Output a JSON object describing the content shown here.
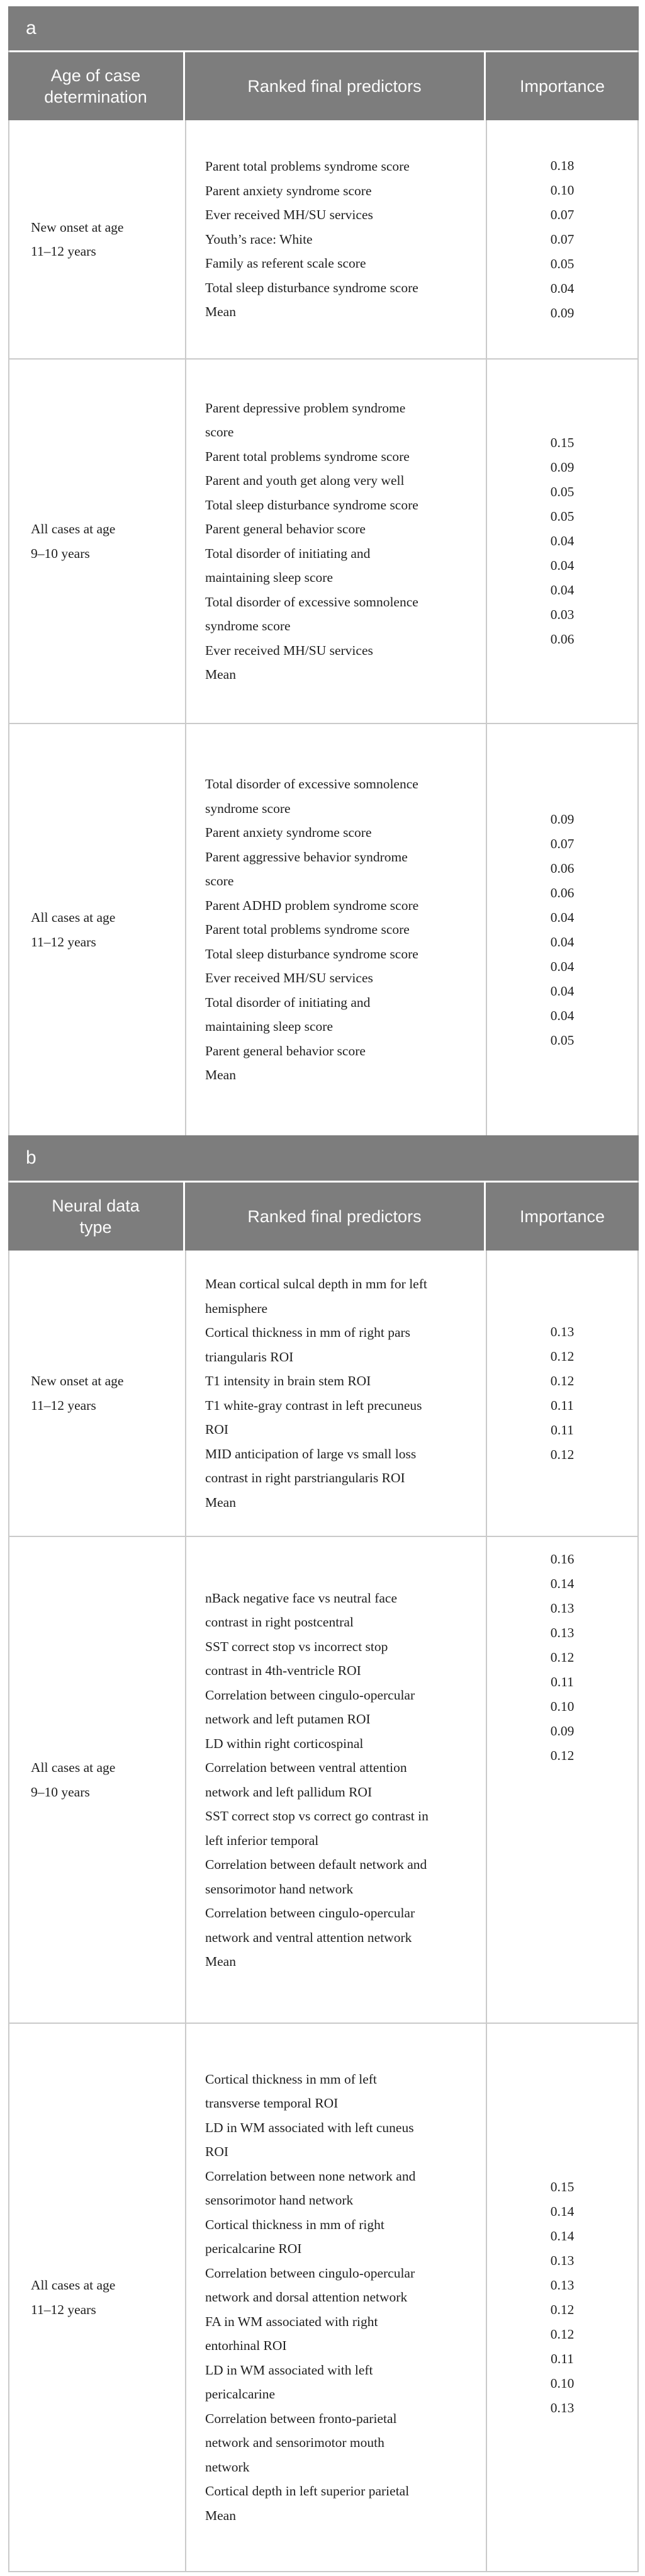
{
  "colors": {
    "header_bg": "#7d7d7d",
    "header_text": "#fbfbfb",
    "body_text": "#1f1f1f",
    "grid_line": "#cacaca"
  },
  "panels": [
    {
      "section_label": "a",
      "headers": [
        "Age of case\ndetermination",
        "Ranked final predictors",
        "Importance"
      ],
      "rows": [
        {
          "label": "New onset at age\n11–12 years",
          "predictors": [
            "Parent total problems syndrome score",
            "Parent anxiety syndrome score",
            "Ever received MH/SU services",
            "Youth’s race: White",
            "Family as referent scale score",
            "Total sleep disturbance syndrome score",
            "Mean"
          ],
          "importance": [
            "0.18",
            "0.10",
            "0.07",
            "0.07",
            "0.05",
            "0.04",
            "0.09"
          ]
        },
        {
          "label": "All cases at age\n9–10 years",
          "predictors": [
            "Parent depressive problem syndrome score",
            "Parent total problems syndrome score",
            "Parent and youth get along very well",
            "Total sleep disturbance syndrome score",
            "Parent general behavior score",
            "Total disorder of initiating and maintaining sleep score",
            "Total disorder of excessive somnolence syndrome score",
            "Ever received MH/SU services",
            "Mean"
          ],
          "importance": [
            "0.15",
            "0.09",
            "0.05",
            "0.05",
            "0.04",
            "0.04",
            "0.04",
            "0.03",
            "0.06"
          ]
        },
        {
          "label": "All cases at age\n11–12 years",
          "predictors": [
            "Total disorder of excessive somnolence syndrome score",
            "Parent anxiety syndrome score",
            "Parent aggressive behavior syndrome score",
            "Parent ADHD problem syndrome score",
            "Parent total problems syndrome score",
            "Total sleep disturbance syndrome score",
            "Ever received MH/SU services",
            "Total disorder of initiating and maintaining sleep score",
            "Parent general behavior score",
            "Mean"
          ],
          "importance": [
            "0.09",
            "0.07",
            "0.06",
            "0.06",
            "0.04",
            "0.04",
            "0.04",
            "0.04",
            "0.04",
            "0.05"
          ]
        }
      ]
    },
    {
      "section_label": "b",
      "headers": [
        "Neural data\ntype",
        "Ranked final predictors",
        "Importance"
      ],
      "rows": [
        {
          "label": "New onset at age\n11–12 years",
          "predictors": [
            "Mean cortical sulcal depth in mm for left hemisphere",
            "Cortical thickness in mm of right pars triangularis ROI",
            "T1 intensity in brain stem ROI",
            "T1 white-gray contrast in left precuneus ROI",
            "MID anticipation of large vs small loss contrast in right parstriangularis ROI",
            "Mean"
          ],
          "importance": [
            "0.13",
            "0.12",
            "0.12",
            "0.11",
            "0.11",
            "0.12"
          ]
        },
        {
          "label": "All cases at age\n9–10 years",
          "predictors": [
            "nBack negative face vs neutral face contrast in right postcentral",
            "SST correct stop vs incorrect stop contrast in 4th-ventricle ROI",
            "Correlation between cingulo-opercular network and left putamen ROI",
            "LD within right corticospinal",
            "Correlation between ventral attention network and left pallidum ROI",
            "SST correct stop vs correct go contrast in left inferior temporal",
            "Correlation between default network and sensorimotor hand network",
            "Correlation between cingulo-opercular network and ventral attention network",
            "Mean"
          ],
          "importance": [
            "0.16",
            "0.14",
            "0.13",
            "0.13",
            "0.12",
            "0.11",
            "0.10",
            "0.09",
            "0.12"
          ]
        },
        {
          "label": "All cases at age\n11–12 years",
          "predictors": [
            "Cortical thickness in mm of left transverse temporal ROI",
            "LD in WM associated with left cuneus ROI",
            "Correlation between none network and sensorimotor hand network",
            "Cortical thickness in mm of right pericalcarine ROI",
            "Correlation between cingulo-opercular network and dorsal attention network",
            "FA in WM associated with right entorhinal ROI",
            "LD in WM associated with left pericalcarine",
            "Correlation between fronto-parietal network and sensorimotor mouth network",
            "Cortical depth in left superior parietal",
            "Mean"
          ],
          "importance": [
            "0.15",
            "0.14",
            "0.14",
            "0.13",
            "0.13",
            "0.12",
            "0.12",
            "0.11",
            "0.10",
            "0.13"
          ]
        }
      ]
    }
  ]
}
